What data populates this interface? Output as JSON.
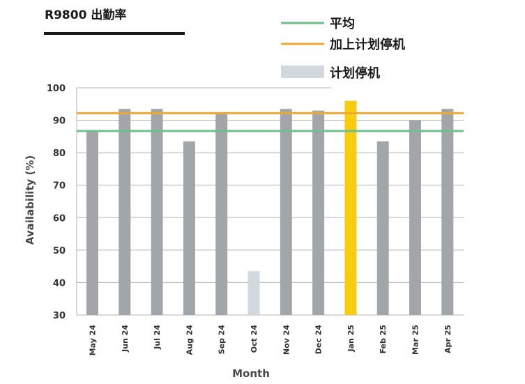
{
  "chart_data": {
    "type": "bar",
    "title": "R9800 出勤率",
    "xlabel": "Month",
    "ylabel": "Availability (%)",
    "ylim": [
      30,
      100
    ],
    "yticks": [
      30,
      40,
      50,
      60,
      70,
      80,
      90,
      100
    ],
    "grid": true,
    "legend_position": "top-right",
    "categories": [
      "May 24",
      "Jun 24",
      "Jul 24",
      "Aug 24",
      "Sep 24",
      "Oct 24",
      "Nov 24",
      "Dec 24",
      "Jan 25",
      "Feb 25",
      "Mar 25",
      "Apr 25"
    ],
    "values": [
      87,
      93.5,
      93.5,
      83.5,
      92,
      43.5,
      93.5,
      93,
      96,
      83.5,
      90,
      93.5
    ],
    "bar_kind": [
      "normal",
      "normal",
      "normal",
      "normal",
      "normal",
      "planned",
      "normal",
      "normal",
      "highlight",
      "normal",
      "normal",
      "normal"
    ],
    "reference_lines": [
      {
        "name": "平均",
        "value": 86.7,
        "color": "#6cc08b"
      },
      {
        "name": "加上计划停机",
        "value": 92.2,
        "color": "#f0a830"
      }
    ],
    "legend": [
      {
        "label": "平均",
        "kind": "line",
        "color": "#6cc08b"
      },
      {
        "label": "加上计划停机",
        "kind": "line",
        "color": "#f0a830"
      },
      {
        "label": "计划停机",
        "kind": "patch",
        "color": "#d3d8de"
      }
    ],
    "colors": {
      "normal": "#a2a6aa",
      "planned": "#d3d8de",
      "highlight": "#f8cc10",
      "grid": "#b3b3b3",
      "title_underline": "#1a1a1a"
    }
  }
}
